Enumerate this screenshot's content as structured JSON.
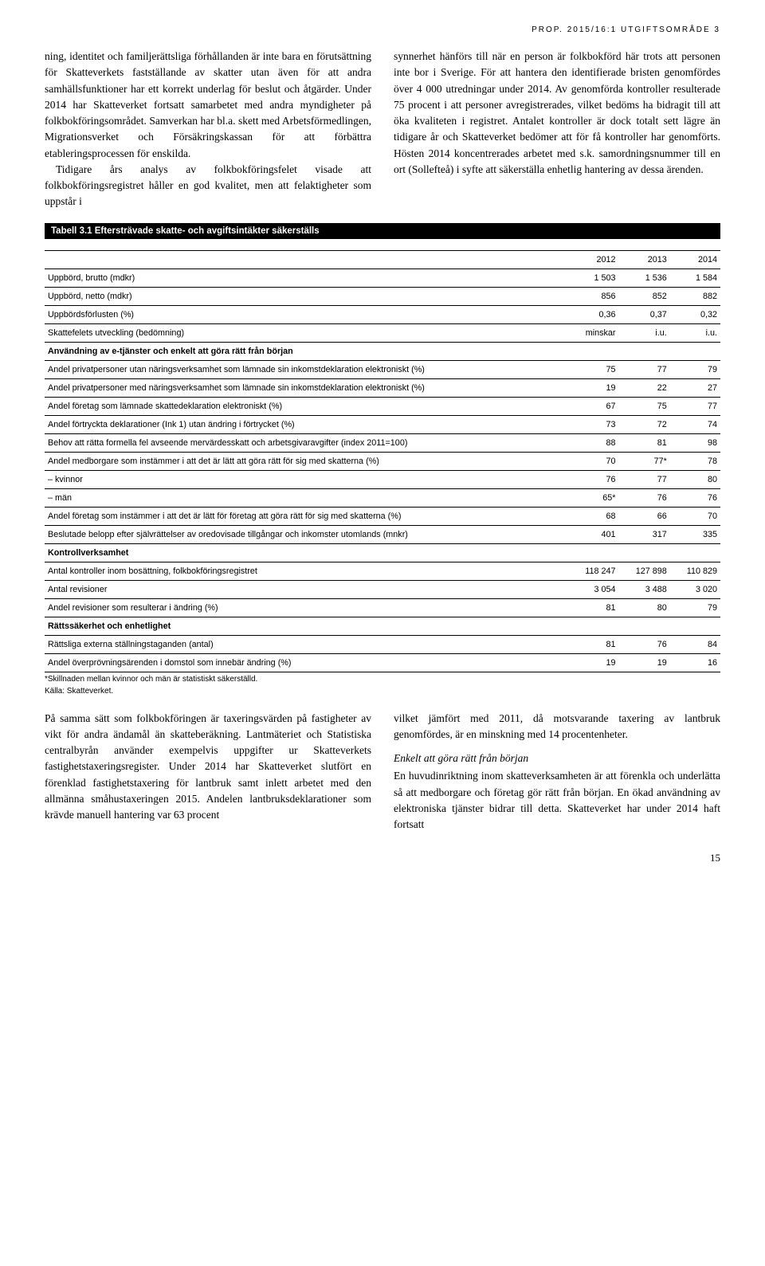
{
  "running_header": "PROP. 2015/16:1 UTGIFTSOMRÅDE 3",
  "top_col_left": {
    "p1": "ning, identitet och familjerättsliga förhållanden är inte bara en förutsättning för Skatteverkets fastställande av skatter utan även för att andra samhällsfunktioner har ett korrekt underlag för beslut och åtgärder. Under 2014 har Skatteverket fortsatt samarbetet med andra myndigheter på folkbokföringsområdet. Samverkan har bl.a. skett med Arbetsförmedlingen, Migrationsverket och Försäkringskassan för att förbättra etableringsprocessen för enskilda.",
    "p2": "Tidigare års analys av folkbokföringsfelet visade att folkbokföringsregistret håller en god kvalitet, men att felaktigheter som uppstår i"
  },
  "top_col_right": {
    "p1": "synnerhet hänförs till när en person är folkbokförd här trots att personen inte bor i Sverige. För att hantera den identifierade bristen genomfördes över 4 000 utredningar under 2014. Av genomförda kontroller resulterade 75 procent i att personer avregistrerades, vilket bedöms ha bidragit till att öka kvaliteten i registret. Antalet kontroller är dock totalt sett lägre än tidigare år och Skatteverket bedömer att för få kontroller har genomförts. Hösten 2014 koncentrerades arbetet med s.k. samordningsnummer till en ort (Sollefteå) i syfte att säkerställa enhetlig hantering av dessa ärenden."
  },
  "table": {
    "caption": "Tabell 3.1 Eftersträvade skatte- och avgiftsintäkter säkerställs",
    "year_cols": [
      "2012",
      "2013",
      "2014"
    ],
    "rows": [
      {
        "label": "Uppbörd, brutto (mdkr)",
        "vals": [
          "1 503",
          "1 536",
          "1 584"
        ]
      },
      {
        "label": "Uppbörd, netto (mdkr)",
        "vals": [
          "856",
          "852",
          "882"
        ]
      },
      {
        "label": "Uppbördsförlusten (%)",
        "vals": [
          "0,36",
          "0,37",
          "0,32"
        ]
      },
      {
        "label": "Skattefelets utveckling (bedömning)",
        "vals": [
          "minskar",
          "i.u.",
          "i.u."
        ]
      },
      {
        "subheader": true,
        "label": "Användning av e-tjänster och enkelt att göra rätt från början"
      },
      {
        "label": "Andel privatpersoner utan näringsverksamhet som lämnade sin inkomstdeklaration elektroniskt (%)",
        "vals": [
          "75",
          "77",
          "79"
        ]
      },
      {
        "label": "Andel privatpersoner med näringsverksamhet som lämnade sin inkomstdeklaration elektroniskt (%)",
        "vals": [
          "19",
          "22",
          "27"
        ]
      },
      {
        "label": "Andel företag som lämnade skattedeklaration elektroniskt (%)",
        "vals": [
          "67",
          "75",
          "77"
        ]
      },
      {
        "label": "Andel förtryckta deklarationer (Ink 1) utan ändring i förtrycket (%)",
        "vals": [
          "73",
          "72",
          "74"
        ]
      },
      {
        "label": "Behov att rätta formella fel avseende mervärdesskatt och arbetsgivaravgifter (index 2011=100)",
        "vals": [
          "88",
          "81",
          "98"
        ]
      },
      {
        "label": "Andel medborgare som instämmer i att det är lätt att göra rätt för sig med skatterna (%)",
        "vals": [
          "70",
          "77*",
          "78"
        ]
      },
      {
        "label": "– kvinnor",
        "vals": [
          "76",
          "77",
          "80"
        ]
      },
      {
        "label": "– män",
        "vals": [
          "65*",
          "76",
          "76"
        ]
      },
      {
        "label": "Andel företag som instämmer i att det är lätt för företag att göra rätt för sig med skatterna (%)",
        "vals": [
          "68",
          "66",
          "70"
        ]
      },
      {
        "label": "Beslutade belopp efter självrättelser av oredovisade tillgångar och inkomster utomlands (mnkr)",
        "vals": [
          "401",
          "317",
          "335"
        ]
      },
      {
        "subheader": true,
        "label": "Kontrollverksamhet"
      },
      {
        "label": "Antal kontroller inom bosättning, folkbokföringsregistret",
        "vals": [
          "118 247",
          "127 898",
          "110 829"
        ]
      },
      {
        "label": "Antal revisioner",
        "vals": [
          "3 054",
          "3 488",
          "3 020"
        ]
      },
      {
        "label": "Andel revisioner som resulterar i ändring (%)",
        "vals": [
          "81",
          "80",
          "79"
        ]
      },
      {
        "subheader": true,
        "label": "Rättssäkerhet och enhetlighet"
      },
      {
        "label": "Rättsliga externa ställningstaganden (antal)",
        "vals": [
          "81",
          "76",
          "84"
        ]
      },
      {
        "label": "Andel överprövningsärenden i domstol som innebär ändring (%)",
        "vals": [
          "19",
          "19",
          "16"
        ]
      }
    ],
    "footnote1": "*Skillnaden mellan kvinnor och män är statistiskt säkerställd.",
    "footnote2": "Källa: Skatteverket."
  },
  "bottom_col_left": {
    "p1": "På samma sätt som folkbokföringen är taxeringsvärden på fastigheter av vikt för andra ändamål än skatteberäkning. Lantmäteriet och Statistiska centralbyrån använder exempelvis uppgifter ur Skatteverkets fastighetstaxeringsregister. Under 2014 har Skatteverket slutfört en förenklad fastighetstaxering för lantbruk samt inlett arbetet med den allmänna småhustaxeringen 2015. Andelen lantbruksdeklarationer som krävde manuell hantering var 63 procent"
  },
  "bottom_col_right": {
    "p1": "vilket jämfört med 2011, då motsvarande taxering av lantbruk genomfördes, är en minskning med 14 procentenheter.",
    "subhead": "Enkelt att göra rätt från början",
    "p2": "En huvudinriktning inom skatteverksamheten är att förenkla och underlätta så att medborgare och företag gör rätt från början. En ökad användning av elektroniska tjänster bidrar till detta. Skatteverket har under 2014 haft fortsatt"
  },
  "page_number": "15"
}
